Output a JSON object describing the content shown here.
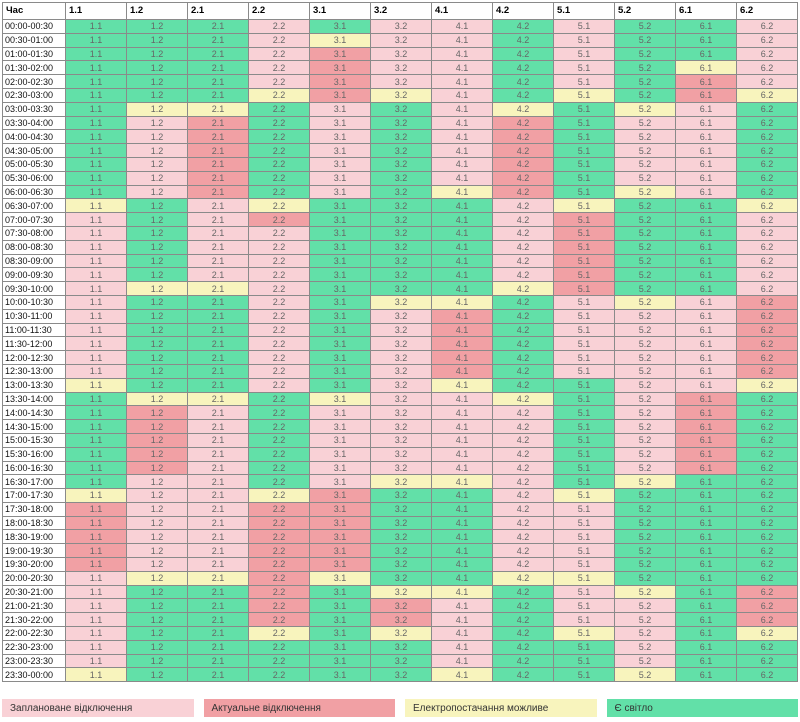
{
  "header": {
    "time_label": "Час"
  },
  "groups": [
    "1.1",
    "1.2",
    "2.1",
    "2.2",
    "3.1",
    "3.2",
    "4.1",
    "4.2",
    "5.1",
    "5.2",
    "6.1",
    "6.2"
  ],
  "status_colors": {
    "P": "#f9d1d6",
    "A": "#f1a0a4",
    "Y": "#f8f4bd",
    "G": "#62e0a8"
  },
  "rows": [
    {
      "time": "00:00-00:30",
      "states": "GGGPGPPGPGGP"
    },
    {
      "time": "00:30-01:00",
      "states": "GGGPYPPGPGGP"
    },
    {
      "time": "01:00-01:30",
      "states": "GGGPAPPGPGGP"
    },
    {
      "time": "01:30-02:00",
      "states": "GGGPAPPGPGYP"
    },
    {
      "time": "02:00-02:30",
      "states": "GGGPAPPGPGAP"
    },
    {
      "time": "02:30-03:00",
      "states": "GGGYAYPGYGAY"
    },
    {
      "time": "03:00-03:30",
      "states": "GYYGPGPYGYPG"
    },
    {
      "time": "03:30-04:00",
      "states": "GPAGPGPAGPPG"
    },
    {
      "time": "04:00-04:30",
      "states": "GPAGPGPAGPPG"
    },
    {
      "time": "04:30-05:00",
      "states": "GPAGPGPAGPPG"
    },
    {
      "time": "05:00-05:30",
      "states": "GPAGPGPAGPPG"
    },
    {
      "time": "05:30-06:00",
      "states": "GPAGPGPAGPPG"
    },
    {
      "time": "06:00-06:30",
      "states": "GPAGPGYAGYPG"
    },
    {
      "time": "06:30-07:00",
      "states": "YGPYGGGPYGGY"
    },
    {
      "time": "07:00-07:30",
      "states": "PGPAGGGPAGGP"
    },
    {
      "time": "07:30-08:00",
      "states": "PGPPGGGPAGGP"
    },
    {
      "time": "08:00-08:30",
      "states": "PGPPGGGPAGGP"
    },
    {
      "time": "08:30-09:00",
      "states": "PGPPGGGPAGGP"
    },
    {
      "time": "09:00-09:30",
      "states": "PGPPGGGPAGGP"
    },
    {
      "time": "09:30-10:00",
      "states": "PYYPGGGYAGGP"
    },
    {
      "time": "10:00-10:30",
      "states": "PGGPGYYGPYPA"
    },
    {
      "time": "10:30-11:00",
      "states": "PGGPGPAGPPPA"
    },
    {
      "time": "11:00-11:30",
      "states": "PGGPGPAGPPPA"
    },
    {
      "time": "11:30-12:00",
      "states": "PGGPGPAGPPPA"
    },
    {
      "time": "12:00-12:30",
      "states": "PGGPGPAGPPPA"
    },
    {
      "time": "12:30-13:00",
      "states": "PGGPGPAGPPPA"
    },
    {
      "time": "13:00-13:30",
      "states": "YGGPGPYGGPPY"
    },
    {
      "time": "13:30-14:00",
      "states": "GYYGYPPYGPAG"
    },
    {
      "time": "14:00-14:30",
      "states": "GAPGPPPPGPAG"
    },
    {
      "time": "14:30-15:00",
      "states": "GAPGPPPPGPAG"
    },
    {
      "time": "15:00-15:30",
      "states": "GAPGPPPPGPAG"
    },
    {
      "time": "15:30-16:00",
      "states": "GAPGPPPPGPAG"
    },
    {
      "time": "16:00-16:30",
      "states": "GAPGPPPPGPAG"
    },
    {
      "time": "16:30-17:00",
      "states": "GPPGPYYPGYGG"
    },
    {
      "time": "17:00-17:30",
      "states": "YPPYAGGPYGGG"
    },
    {
      "time": "17:30-18:00",
      "states": "APPAAGGPPGGG"
    },
    {
      "time": "18:00-18:30",
      "states": "APPAAGGPPGGG"
    },
    {
      "time": "18:30-19:00",
      "states": "APPAAGGPPGGG"
    },
    {
      "time": "19:00-19:30",
      "states": "APPAAGGPPGGG"
    },
    {
      "time": "19:30-20:00",
      "states": "APPAAGGPPGGG"
    },
    {
      "time": "20:00-20:30",
      "states": "PYYAYGGYYGGG"
    },
    {
      "time": "20:30-21:00",
      "states": "PGGAGYYGPYGA"
    },
    {
      "time": "21:00-21:30",
      "states": "PGGAGAPGPPGA"
    },
    {
      "time": "21:30-22:00",
      "states": "PGGAGAPGPPGA"
    },
    {
      "time": "22:00-22:30",
      "states": "PGGYGYPGYPGY"
    },
    {
      "time": "22:30-23:00",
      "states": "PGGGGGPGGPGG"
    },
    {
      "time": "23:00-23:30",
      "states": "PGGGGGPGGPGG"
    },
    {
      "time": "23:30-00:00",
      "states": "YGGGGGYGGYGG"
    }
  ],
  "legend": [
    {
      "key": "P",
      "label": "Заплановане відключення"
    },
    {
      "key": "A",
      "label": "Актуальне відключення"
    },
    {
      "key": "Y",
      "label": "Електропостачання можливе"
    },
    {
      "key": "G",
      "label": "Є світло"
    }
  ]
}
